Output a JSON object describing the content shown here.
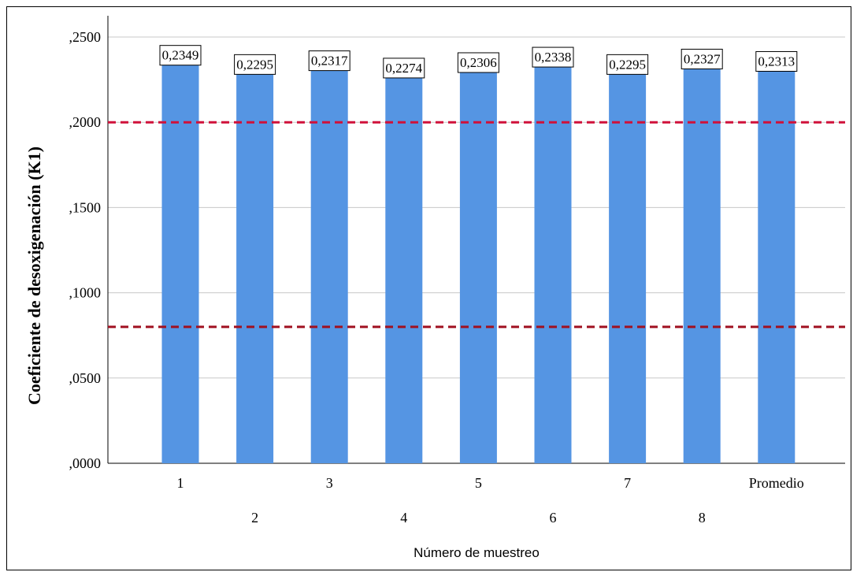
{
  "chart_data": {
    "type": "bar",
    "categories": [
      "1",
      "2",
      "3",
      "4",
      "5",
      "6",
      "7",
      "8",
      "Promedio"
    ],
    "values": [
      0.2349,
      0.2295,
      0.2317,
      0.2274,
      0.2306,
      0.2338,
      0.2295,
      0.2327,
      0.2313
    ],
    "data_labels": [
      "0,2349",
      "0,2295",
      "0,2317",
      "0,2274",
      "0,2306",
      "0,2338",
      "0,2295",
      "0,2327",
      "0,2313"
    ],
    "xlabel": "Número de muestreo",
    "ylabel": "Coeficiente de desoxigenación (K1)",
    "ylim": [
      0,
      0.25
    ],
    "yticks": [
      0,
      0.05,
      0.1,
      0.15,
      0.2,
      0.25
    ],
    "ytick_labels": [
      ",0000",
      ",0500",
      ",1000",
      ",1500",
      ",2000",
      ",2500"
    ],
    "grid": true,
    "reference_lines": [
      {
        "value": 0.2,
        "style": "dashed",
        "color": "#d0103a"
      },
      {
        "value": 0.08,
        "style": "dashed",
        "color": "#a01020"
      }
    ],
    "bar_color": "#5595e3",
    "gridline_color": "#c8c8c8"
  }
}
